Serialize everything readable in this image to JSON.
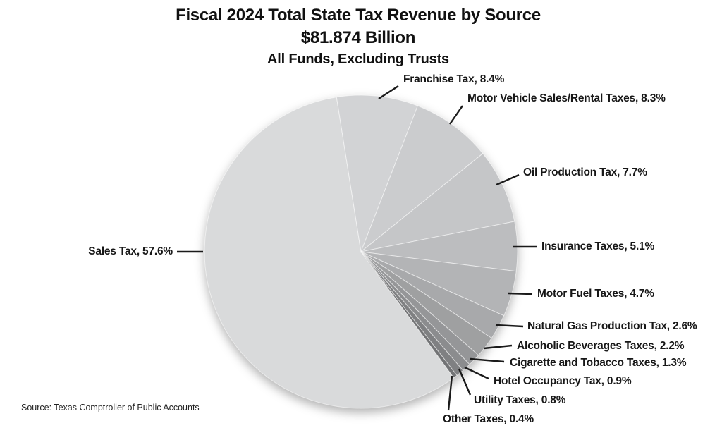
{
  "title": {
    "line1": "Fiscal 2024 Total State Tax Revenue by Source",
    "line2": "$81.874 Billion",
    "line3": "All Funds, Excluding Trusts"
  },
  "source": "Source: Texas Comptroller of Public Accounts",
  "chart_data": {
    "type": "pie",
    "title": "Fiscal 2024 Total State Tax Revenue by Source",
    "subtitle": "$81.874 Billion",
    "note": "All Funds, Excluding Trusts",
    "unit": "%",
    "total": 100.0,
    "start_angle_deg_from_top": 143.64,
    "direction": "clockwise",
    "legend": "off",
    "categories": [
      "Sales Tax",
      "Franchise Tax",
      "Motor Vehicle Sales/Rental Taxes",
      "Oil Production Tax",
      "Insurance Taxes",
      "Motor Fuel Taxes",
      "Natural Gas Production Tax",
      "Alcoholic Beverages Taxes",
      "Cigarette and Tobacco Taxes",
      "Hotel Occupancy Tax",
      "Utility Taxes",
      "Other Taxes"
    ],
    "values": [
      57.6,
      8.4,
      8.3,
      7.7,
      5.1,
      4.7,
      2.6,
      2.2,
      1.3,
      0.9,
      0.8,
      0.4
    ],
    "labels": [
      "Sales Tax, 57.6%",
      "Franchise Tax, 8.4%",
      "Motor Vehicle Sales/Rental Taxes, 8.3%",
      "Oil Production Tax, 7.7%",
      "Insurance Taxes, 5.1%",
      "Motor Fuel Taxes, 4.7%",
      "Natural Gas Production Tax, 2.6%",
      "Alcoholic Beverages Taxes, 2.2%",
      "Cigarette and Tobacco Taxes, 1.3%",
      "Hotel Occupancy Tax, 0.9%",
      "Utility Taxes, 0.8%",
      "Other Taxes, 0.4%"
    ],
    "colors": [
      "#d9dadb",
      "#d2d3d5",
      "#cbccce",
      "#c5c6c8",
      "#bcbdbf",
      "#b3b4b6",
      "#a8a9ab",
      "#9fa0a1",
      "#959698",
      "#8b8c8e",
      "#7f8082",
      "#727375"
    ],
    "leader_line_color": "#1a1a1a",
    "text_color": "#171717"
  }
}
